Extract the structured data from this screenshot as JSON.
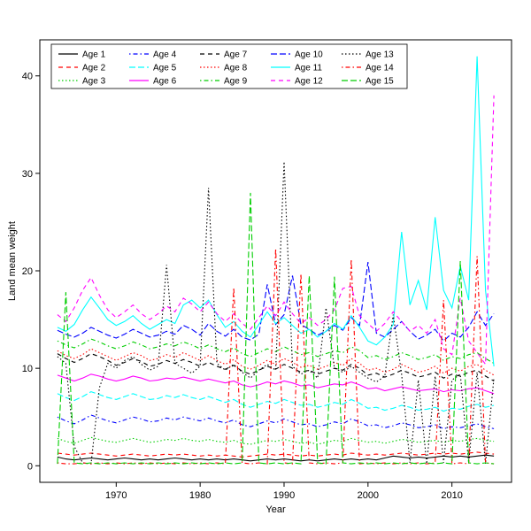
{
  "chart_data": {
    "type": "line",
    "title": "",
    "xlabel": "Year",
    "ylabel": "Land mean weight",
    "x_ticks": [
      1970,
      1980,
      1990,
      2000,
      2010
    ],
    "y_ticks": [
      0,
      10,
      20,
      30,
      40
    ],
    "xlim": [
      1960.9,
      2017.1
    ],
    "ylim": [
      -1.7,
      43.7
    ],
    "grid": false,
    "legend": {
      "position": "top-inside",
      "columns": 5
    },
    "x": [
      1963,
      1964,
      1965,
      1966,
      1967,
      1968,
      1969,
      1970,
      1971,
      1972,
      1973,
      1974,
      1975,
      1976,
      1977,
      1978,
      1979,
      1980,
      1981,
      1982,
      1983,
      1984,
      1985,
      1986,
      1987,
      1988,
      1989,
      1990,
      1991,
      1992,
      1993,
      1994,
      1995,
      1996,
      1997,
      1998,
      1999,
      2000,
      2001,
      2002,
      2003,
      2004,
      2005,
      2006,
      2007,
      2008,
      2009,
      2010,
      2011,
      2012,
      2013,
      2014,
      2015
    ],
    "series": [
      {
        "name": "Age 1",
        "color": "#000000",
        "style": "solid",
        "values": [
          0.9,
          0.7,
          0.6,
          0.7,
          0.8,
          0.7,
          0.6,
          0.7,
          0.8,
          0.7,
          0.6,
          0.7,
          0.6,
          0.7,
          0.8,
          0.7,
          0.6,
          0.7,
          0.6,
          0.7,
          0.6,
          0.7,
          0.6,
          0.5,
          0.6,
          0.7,
          0.6,
          0.7,
          0.6,
          0.5,
          0.6,
          0.5,
          0.6,
          0.7,
          0.6,
          0.7,
          0.6,
          0.7,
          0.6,
          0.8,
          1.0,
          0.9,
          0.8,
          0.9,
          0.8,
          0.9,
          1.0,
          0.9,
          1.0,
          0.9,
          1.0,
          1.1,
          1.0
        ]
      },
      {
        "name": "Age 2",
        "color": "#FF0000",
        "style": "dashed",
        "values": [
          1.3,
          1.2,
          1.1,
          1.2,
          1.3,
          1.2,
          1.1,
          1.0,
          1.1,
          1.2,
          1.1,
          1.0,
          1.1,
          1.2,
          1.1,
          1.2,
          1.1,
          1.0,
          1.1,
          1.0,
          1.1,
          1.0,
          0.9,
          1.0,
          1.1,
          1.2,
          1.1,
          1.2,
          1.1,
          1.0,
          1.1,
          1.0,
          1.1,
          1.2,
          1.1,
          1.3,
          1.2,
          1.1,
          1.2,
          1.1,
          1.2,
          1.3,
          1.2,
          1.1,
          1.2,
          1.3,
          1.2,
          1.3,
          1.2,
          1.3,
          1.4,
          1.3,
          1.2
        ]
      },
      {
        "name": "Age 3",
        "color": "#00CD00",
        "style": "dotted",
        "values": [
          2.8,
          2.5,
          2.3,
          2.6,
          2.9,
          2.7,
          2.5,
          2.4,
          2.6,
          2.8,
          2.6,
          2.4,
          2.5,
          2.7,
          2.6,
          2.8,
          2.6,
          2.5,
          2.7,
          2.5,
          2.4,
          2.6,
          2.3,
          2.2,
          2.4,
          2.6,
          2.5,
          2.7,
          2.5,
          2.3,
          2.4,
          2.2,
          2.4,
          2.6,
          2.5,
          2.8,
          2.6,
          2.4,
          2.5,
          2.3,
          2.5,
          2.7,
          2.6,
          2.4,
          2.5,
          2.6,
          2.4,
          2.6,
          2.5,
          2.7,
          2.8,
          2.6,
          2.5
        ]
      },
      {
        "name": "Age 4",
        "color": "#0000FF",
        "style": "dotdash",
        "values": [
          5.0,
          4.6,
          4.3,
          4.7,
          5.2,
          4.9,
          4.6,
          4.4,
          4.7,
          5.0,
          4.8,
          4.5,
          4.6,
          4.9,
          4.7,
          5.0,
          4.8,
          4.6,
          4.9,
          4.6,
          4.4,
          4.7,
          4.2,
          4.0,
          4.3,
          4.6,
          4.4,
          4.8,
          4.5,
          4.2,
          4.3,
          4.0,
          4.2,
          4.5,
          4.3,
          4.8,
          4.5,
          4.1,
          4.2,
          3.9,
          4.1,
          4.4,
          4.2,
          3.9,
          4.0,
          4.2,
          3.8,
          4.0,
          3.9,
          4.1,
          4.3,
          4.0,
          3.8
        ]
      },
      {
        "name": "Age 5",
        "color": "#00FFFF",
        "style": "longdash",
        "values": [
          7.4,
          7.0,
          6.7,
          7.1,
          7.6,
          7.3,
          7.0,
          6.8,
          7.1,
          7.4,
          7.1,
          6.8,
          6.9,
          7.2,
          7.0,
          7.3,
          7.0,
          6.8,
          7.1,
          6.8,
          6.5,
          6.8,
          6.3,
          6.0,
          6.3,
          6.6,
          6.4,
          6.8,
          6.5,
          6.2,
          6.3,
          6.0,
          6.2,
          6.5,
          6.3,
          6.8,
          6.4,
          5.9,
          6.0,
          5.7,
          5.9,
          6.2,
          6.0,
          5.7,
          5.8,
          6.0,
          5.6,
          5.9,
          5.8,
          6.1,
          6.3,
          6.0,
          6.2
        ]
      },
      {
        "name": "Age 6",
        "color": "#FF00FF",
        "style": "solid",
        "values": [
          9.3,
          9.0,
          8.7,
          9.0,
          9.4,
          9.2,
          8.9,
          8.7,
          8.9,
          9.2,
          9.0,
          8.7,
          8.8,
          9.0,
          8.9,
          9.1,
          8.9,
          8.7,
          8.9,
          8.7,
          8.5,
          8.7,
          8.3,
          8.1,
          8.3,
          8.6,
          8.4,
          8.7,
          8.5,
          8.2,
          8.3,
          8.0,
          8.2,
          8.4,
          8.3,
          8.6,
          8.3,
          7.9,
          8.0,
          7.7,
          7.9,
          8.1,
          7.9,
          7.7,
          7.8,
          7.9,
          7.6,
          7.8,
          7.7,
          7.9,
          8.0,
          7.7,
          7.4
        ]
      },
      {
        "name": "Age 7",
        "color": "#000000",
        "style": "dashed",
        "values": [
          11.5,
          11.0,
          10.6,
          11.0,
          11.5,
          11.2,
          10.8,
          10.3,
          10.6,
          11.0,
          10.7,
          10.2,
          10.4,
          10.8,
          10.5,
          10.9,
          10.6,
          10.2,
          10.6,
          10.2,
          9.9,
          10.3,
          9.7,
          9.4,
          9.8,
          10.2,
          9.9,
          10.4,
          10.0,
          9.6,
          9.8,
          9.4,
          9.7,
          10.0,
          9.8,
          10.4,
          10.0,
          9.3,
          9.5,
          9.1,
          9.4,
          9.8,
          9.5,
          9.1,
          9.3,
          9.6,
          9.0,
          9.4,
          9.2,
          9.6,
          9.8,
          9.2,
          8.7
        ]
      },
      {
        "name": "Age 8",
        "color": "#FF0000",
        "style": "dotted",
        "values": [
          11.8,
          11.3,
          11.0,
          11.4,
          12.0,
          11.6,
          11.2,
          10.8,
          11.2,
          11.6,
          11.3,
          10.8,
          11.0,
          11.4,
          11.1,
          11.6,
          11.2,
          10.8,
          11.3,
          10.8,
          10.4,
          10.9,
          10.2,
          9.9,
          10.3,
          10.8,
          10.4,
          11.0,
          10.6,
          10.1,
          10.3,
          9.9,
          10.2,
          10.6,
          10.3,
          11.0,
          10.5,
          9.8,
          10.0,
          9.6,
          9.9,
          10.4,
          10.0,
          9.6,
          9.8,
          10.2,
          9.5,
          10.0,
          9.7,
          10.2,
          10.4,
          9.8,
          9.3
        ]
      },
      {
        "name": "Age 9",
        "color": "#00CD00",
        "style": "dotdash",
        "values": [
          12.8,
          12.4,
          12.1,
          12.5,
          13.0,
          12.7,
          12.3,
          12.0,
          12.3,
          12.7,
          12.4,
          12.0,
          12.2,
          12.5,
          12.3,
          12.7,
          12.4,
          12.0,
          12.4,
          12.0,
          11.7,
          12.1,
          11.5,
          11.2,
          11.6,
          12.0,
          11.7,
          12.2,
          11.8,
          11.4,
          11.6,
          11.2,
          11.5,
          11.8,
          11.6,
          12.2,
          11.8,
          11.1,
          11.3,
          10.9,
          11.2,
          11.6,
          11.3,
          10.9,
          11.1,
          11.4,
          10.8,
          11.2,
          11.0,
          11.4,
          11.6,
          11.0,
          10.5
        ]
      },
      {
        "name": "Age 10",
        "color": "#0000FF",
        "style": "longdash",
        "values": [
          13.9,
          13.5,
          13.2,
          13.6,
          14.2,
          13.8,
          13.4,
          13.1,
          13.5,
          14.0,
          13.6,
          13.2,
          13.4,
          13.8,
          13.5,
          14.4,
          14.0,
          13.4,
          14.6,
          13.8,
          13.3,
          14.0,
          13.2,
          12.9,
          13.5,
          18.6,
          14.5,
          15.5,
          19.5,
          14.5,
          14.0,
          13.4,
          13.8,
          14.4,
          13.9,
          15.2,
          14.4,
          20.9,
          13.6,
          13.2,
          14.0,
          14.8,
          13.8,
          13.0,
          13.4,
          14.0,
          12.8,
          13.6,
          13.2,
          14.2,
          15.8,
          14.4,
          15.6
        ]
      },
      {
        "name": "Age 11",
        "color": "#00FFFF",
        "style": "solid",
        "values": [
          14.2,
          13.8,
          14.5,
          16.0,
          17.3,
          16.2,
          15.0,
          14.4,
          14.8,
          15.4,
          14.6,
          14.0,
          14.5,
          15.0,
          14.6,
          16.5,
          17.0,
          16.2,
          17.0,
          15.5,
          14.2,
          14.8,
          13.8,
          13.2,
          14.5,
          15.8,
          14.6,
          15.2,
          14.4,
          13.6,
          14.0,
          13.2,
          13.8,
          14.6,
          14.0,
          15.4,
          14.2,
          12.8,
          12.4,
          13.2,
          14.5,
          24.0,
          16.5,
          19.0,
          16.0,
          25.5,
          18.0,
          16.2,
          20.5,
          17.0,
          42.0,
          18.0,
          10.2
        ]
      },
      {
        "name": "Age 12",
        "color": "#FF00FF",
        "style": "dashed",
        "values": [
          15.5,
          14.8,
          16.2,
          18.0,
          19.3,
          17.5,
          16.0,
          15.2,
          15.8,
          16.5,
          15.6,
          15.0,
          15.6,
          16.4,
          15.8,
          17.2,
          16.6,
          15.8,
          16.8,
          15.6,
          14.8,
          15.6,
          14.6,
          14.0,
          15.2,
          16.4,
          15.4,
          16.8,
          15.6,
          14.6,
          15.2,
          14.4,
          15.0,
          16.0,
          18.2,
          18.4,
          15.4,
          14.6,
          13.8,
          14.6,
          15.8,
          14.8,
          13.8,
          14.4,
          13.6,
          15.0,
          12.0,
          11.4,
          17.2,
          12.8,
          11.6,
          10.4,
          38.0
        ]
      },
      {
        "name": "Age 13",
        "color": "#000000",
        "style": "dotted",
        "values": [
          11.2,
          10.5,
          2.0,
          0.3,
          0.2,
          8.0,
          10.5,
          10.0,
          10.8,
          11.2,
          10.4,
          9.8,
          10.2,
          20.6,
          10.5,
          10.0,
          9.5,
          10.2,
          28.5,
          10.5,
          9.8,
          10.4,
          9.6,
          9.0,
          9.8,
          10.4,
          9.8,
          31.2,
          10.2,
          9.4,
          9.8,
          9.0,
          16.2,
          10.0,
          9.6,
          10.2,
          9.6,
          9.0,
          8.6,
          9.2,
          15.5,
          9.4,
          0.3,
          8.8,
          0.2,
          9.2,
          0.3,
          8.8,
          9.4,
          0.3,
          9.6,
          0.2,
          9.0
        ]
      },
      {
        "name": "Age 14",
        "color": "#FF0000",
        "style": "dotdash",
        "values": [
          0.3,
          0.2,
          0.2,
          0.3,
          0.2,
          0.3,
          0.2,
          0.3,
          0.2,
          0.3,
          0.2,
          0.3,
          0.2,
          0.3,
          0.2,
          0.3,
          0.2,
          0.3,
          0.2,
          0.3,
          0.2,
          18.3,
          0.3,
          0.2,
          0.3,
          0.2,
          22.3,
          0.3,
          0.2,
          19.7,
          0.3,
          0.2,
          0.3,
          0.2,
          0.3,
          21.2,
          0.2,
          0.3,
          0.2,
          0.3,
          0.2,
          0.3,
          0.2,
          0.3,
          0.2,
          0.3,
          17.0,
          0.2,
          0.3,
          0.2,
          21.5,
          0.3,
          0.2
        ]
      },
      {
        "name": "Age 15",
        "color": "#00CD00",
        "style": "longdash",
        "values": [
          0.2,
          17.8,
          0.3,
          0.2,
          0.3,
          0.2,
          0.3,
          0.2,
          0.3,
          0.2,
          0.3,
          0.2,
          0.3,
          0.2,
          0.3,
          0.2,
          0.3,
          0.2,
          0.3,
          0.2,
          0.3,
          0.2,
          0.3,
          28.0,
          0.3,
          0.2,
          0.3,
          0.2,
          0.3,
          0.2,
          19.5,
          0.3,
          0.2,
          19.4,
          0.3,
          0.2,
          0.3,
          0.2,
          0.3,
          0.2,
          0.3,
          0.2,
          0.3,
          0.2,
          0.3,
          0.2,
          0.3,
          0.2,
          21.0,
          0.3,
          0.2,
          0.3,
          0.2
        ]
      }
    ]
  }
}
